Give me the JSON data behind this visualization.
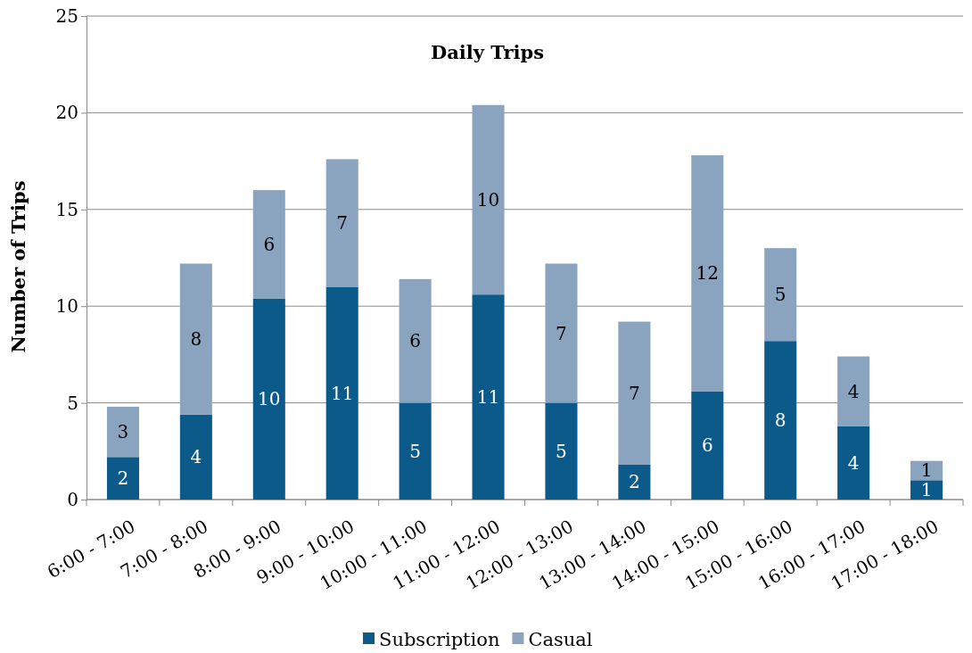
{
  "chart_data": {
    "type": "bar",
    "title": "Daily Trips",
    "ylabel": "Number of Trips",
    "stacked": true,
    "grid": "y",
    "legend": "bottom",
    "categories": [
      "6:00 - 7:00",
      "7:00 - 8:00",
      "8:00 - 9:00",
      "9:00 - 10:00",
      "10:00 - 11:00",
      "11:00 - 12:00",
      "12:00 - 13:00",
      "13:00 - 14:00",
      "14:00 - 15:00",
      "15:00 - 16:00",
      "16:00 - 17:00",
      "17:00 - 18:00"
    ],
    "ylim": [
      0,
      25
    ],
    "yticks": [
      0,
      5,
      10,
      15,
      20,
      25
    ],
    "series": [
      {
        "name": "Subscription",
        "color": "#0b5a89",
        "values": [
          2.2,
          4.4,
          10.4,
          11.0,
          5.0,
          10.6,
          5.0,
          1.8,
          5.6,
          8.2,
          3.8,
          1.0
        ],
        "value_labels": [
          "2",
          "4",
          "10",
          "11",
          "5",
          "11",
          "5",
          "2",
          "6",
          "8",
          "4",
          "1"
        ]
      },
      {
        "name": "Casual",
        "color": "#8aa3be",
        "values": [
          2.6,
          7.8,
          5.6,
          6.6,
          6.4,
          9.8,
          7.2,
          7.4,
          12.2,
          4.8,
          3.6,
          1.0
        ],
        "value_labels": [
          "3",
          "8",
          "6",
          "7",
          "6",
          "10",
          "7",
          "7",
          "12",
          "5",
          "4",
          "1"
        ]
      }
    ]
  }
}
